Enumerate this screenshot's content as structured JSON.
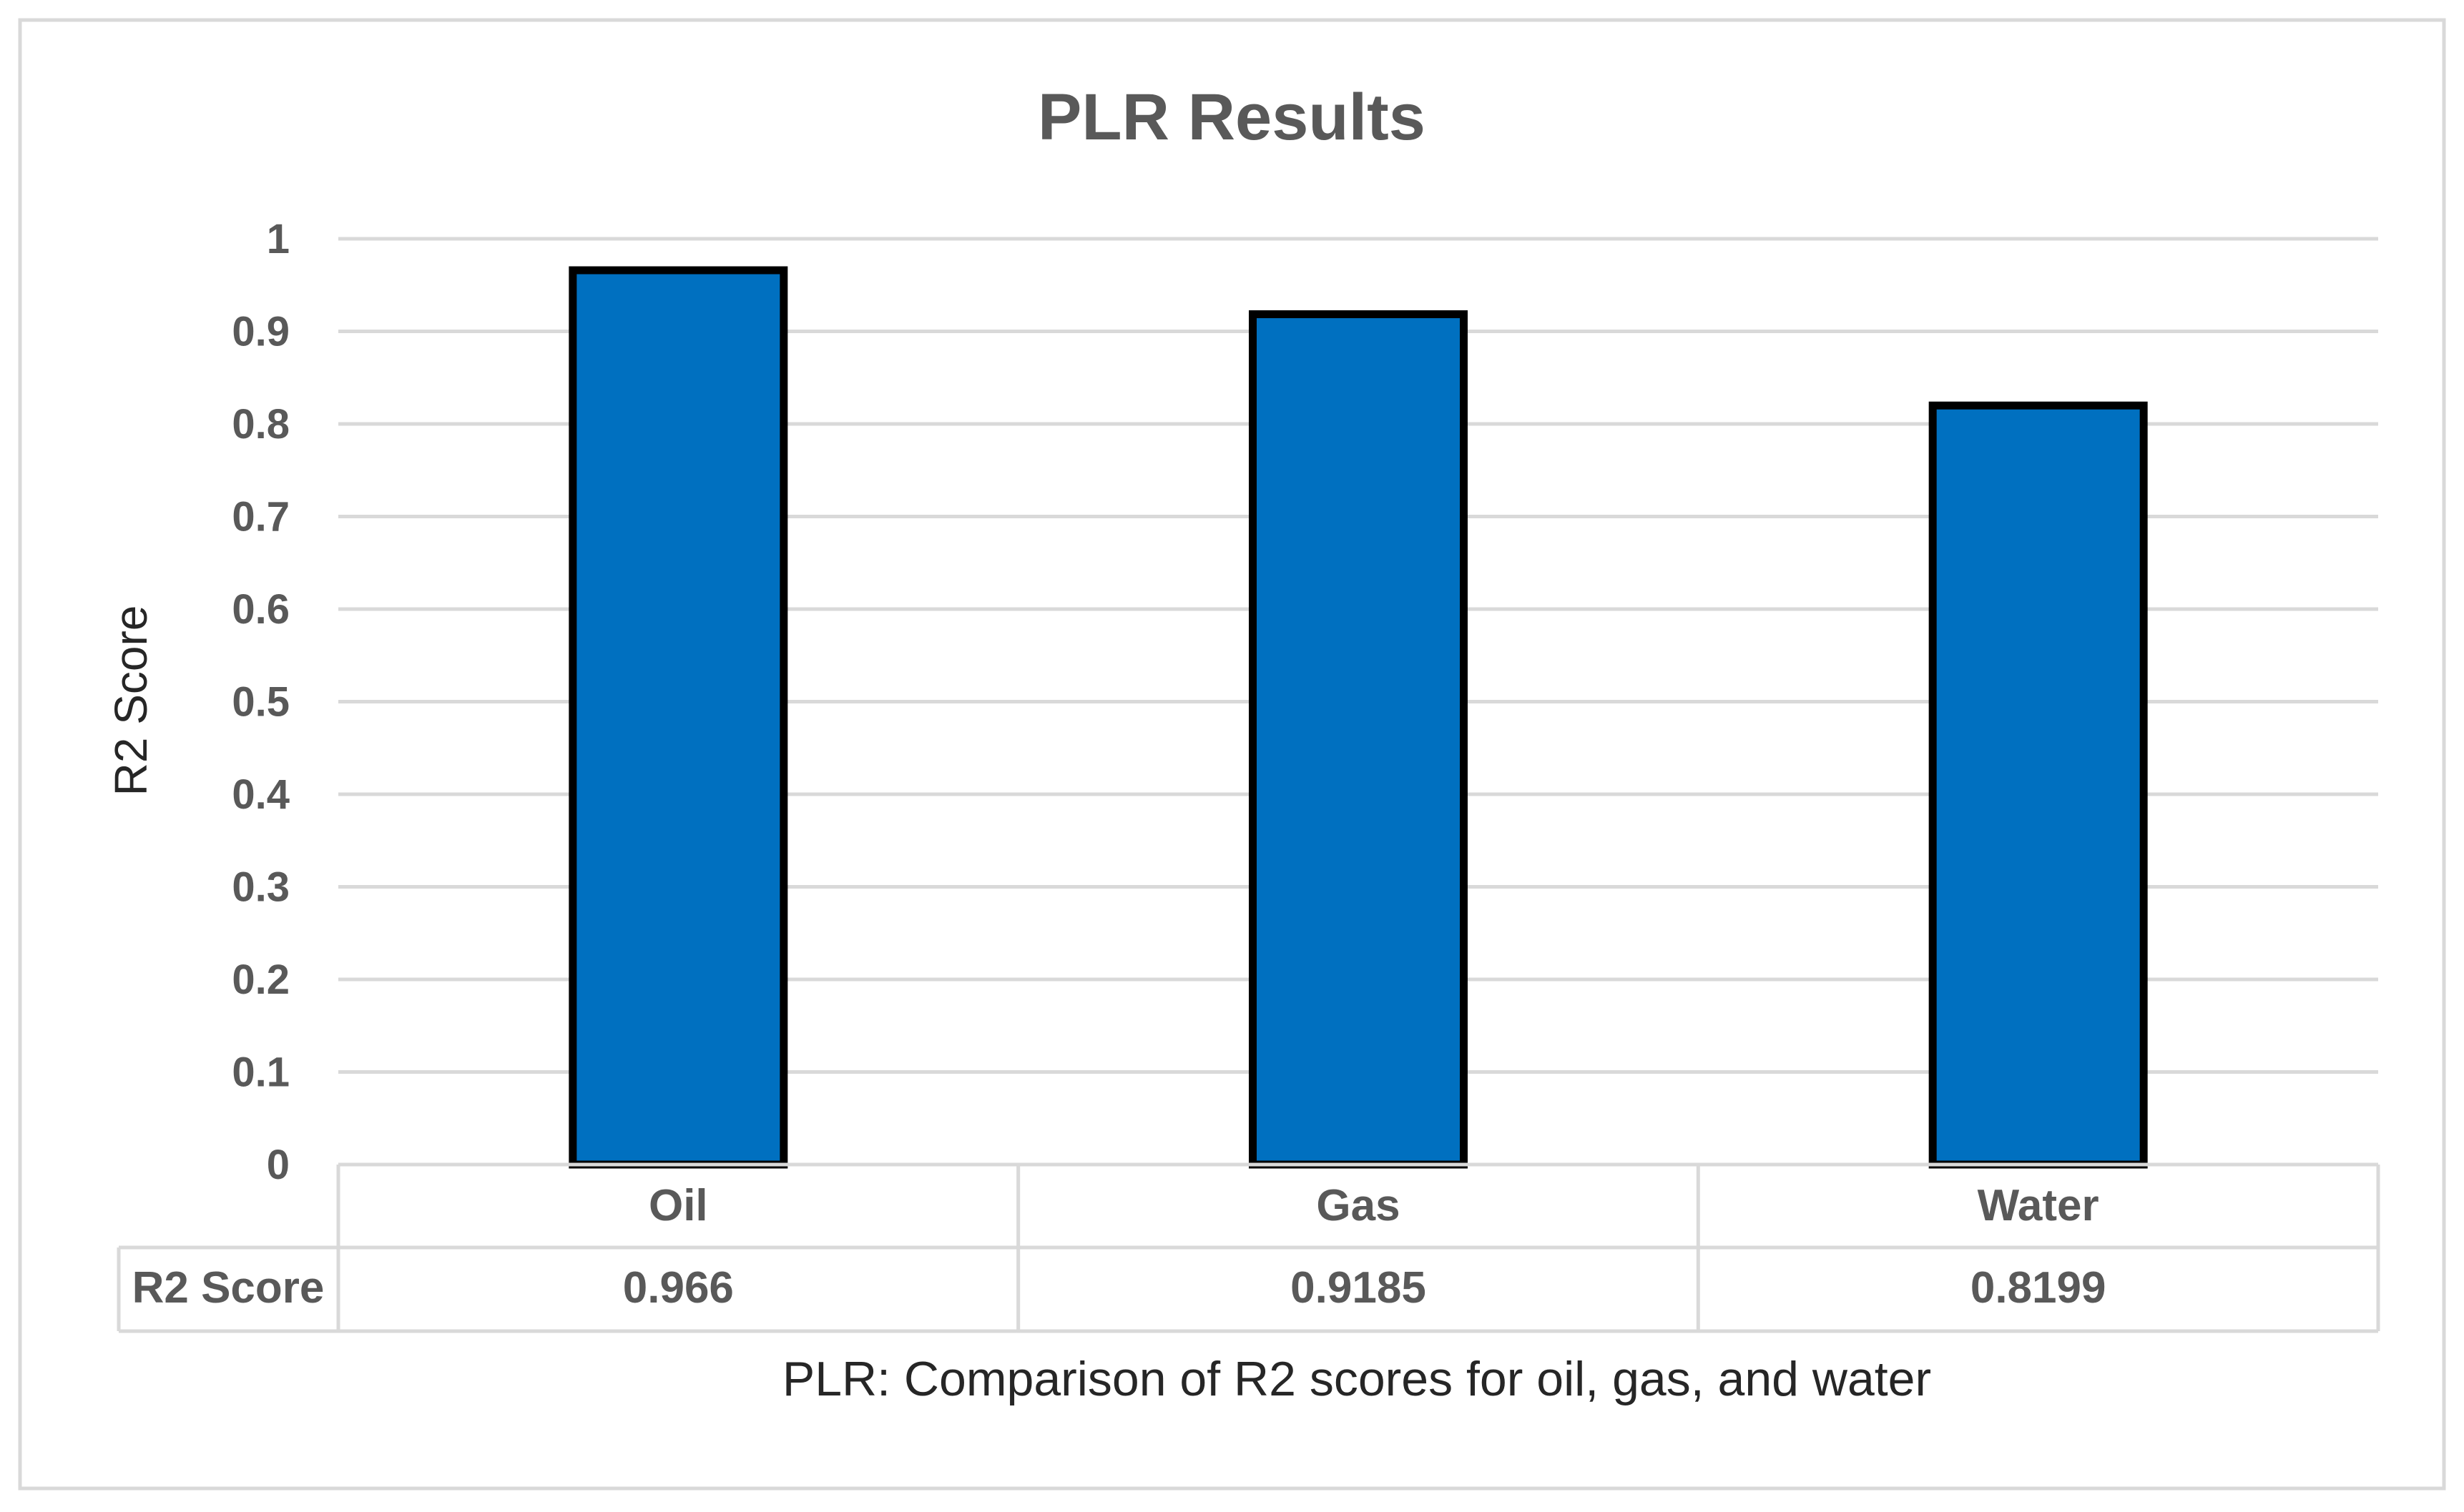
{
  "chart_data": {
    "type": "bar",
    "title": "PLR Results",
    "ylabel": "R2 Score",
    "xlabel": "PLR: Comparison of R2 scores for oil, gas, and water",
    "categories": [
      "Oil",
      "Gas",
      "Water"
    ],
    "series": [
      {
        "name": "R2 Score",
        "values": [
          0.966,
          0.9185,
          0.8199
        ],
        "display": [
          "0.966",
          "0.9185",
          "0.8199"
        ]
      }
    ],
    "ylim": [
      0,
      1
    ],
    "yticks": [
      "0",
      "0.1",
      "0.2",
      "0.3",
      "0.4",
      "0.5",
      "0.6",
      "0.7",
      "0.8",
      "0.9",
      "1"
    ],
    "grid": true,
    "data_table": true,
    "colors": {
      "bar": "#0070C0",
      "bar_outline": "#000000",
      "grid": "#D9D9D9",
      "text": "#595959"
    }
  }
}
